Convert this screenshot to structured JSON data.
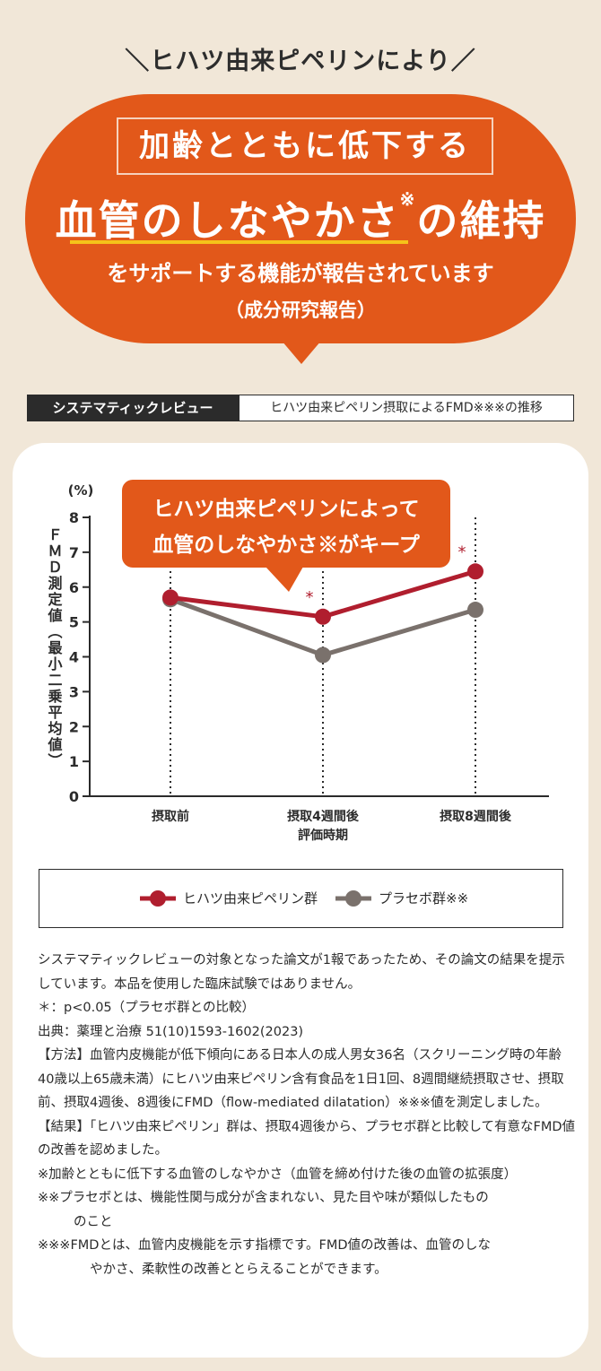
{
  "header": {
    "top_line": "＼ヒハツ由来ピペリンにより／",
    "box_text": "加齢とともに低下する",
    "big_line_main": "血管のしなやかさ",
    "big_line_mark": "※",
    "big_line_end": "の維持",
    "sub_line": "をサポートする機能が報告されています",
    "sub_line2": "（成分研究報告）"
  },
  "section": {
    "label": "システマティックレビュー",
    "title": "ヒハツ由来ピペリン摂取によるFMD※※※の推移"
  },
  "colors": {
    "orange": "#e2581a",
    "piperine": "#b01e2e",
    "placebo": "#7a716c",
    "yellow": "#f5c21a"
  },
  "chart_data": {
    "type": "line",
    "y_unit": "(%)",
    "ylabel": "ＦＭＤ測定値（最小二乗平均値）",
    "ylim": [
      0,
      8
    ],
    "yticks": [
      0,
      1,
      2,
      3,
      4,
      5,
      6,
      7,
      8
    ],
    "categories": [
      "摂取前",
      "摂取4週間後",
      "摂取8週間後"
    ],
    "xlabel_sub": "評価時期",
    "series": [
      {
        "name": "ヒハツ由来ピペリン群",
        "values": [
          5.7,
          5.15,
          6.45
        ]
      },
      {
        "name": "プラセボ群※※",
        "values": [
          5.65,
          4.05,
          5.35
        ]
      }
    ],
    "significance_marks": [
      "",
      "*",
      "*"
    ],
    "callout_line1": "ヒハツ由来ピペリンによって",
    "callout_line2": "血管のしなやかさ※がキープ"
  },
  "notes": [
    "システマティックレビューの対象となった論文が1報であったため、その論文の結果を提示しています。本品を使用した臨床試験ではありません。",
    "＊：p<0.05（プラセボ群との比較）",
    "出典：薬理と治療 51(10)1593-1602(2023)",
    "【方法】血管内皮機能が低下傾向にある日本人の成人男女36名（スクリーニング時の年齢40歳以上65歳未満）にヒハツ由来ピペリン含有食品を1日1回、8週間継続摂取させ、摂取前、摂取4週後、8週後にFMD（flow-mediated dilatation）※※※値を測定しました。",
    "【結果】「ヒハツ由来ピペリン」群は、摂取4週後から、プラセボ群と比較して有意なFMD値の改善を認めました。",
    "※加齢とともに低下する血管のしなやかさ（血管を締め付けた後の血管の拡張度）",
    "※※プラセボとは、機能性関与成分が含まれない、見た目や味が類似したもの",
    "のこと",
    "※※※FMDとは、血管内皮機能を示す指標です。FMD値の改善は、血管のしな",
    "やかさ、柔軟性の改善ととらえることができます。"
  ]
}
